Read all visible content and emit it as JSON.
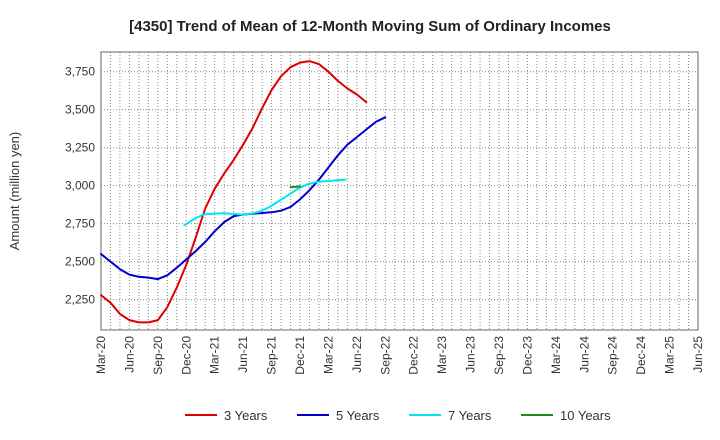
{
  "chart_data": {
    "type": "line",
    "title": "[4350]  Trend of Mean of 12-Month Moving Sum of Ordinary Incomes",
    "xlabel": "",
    "ylabel": "Amount (million yen)",
    "ylim": [
      2050,
      3880
    ],
    "yticks": [
      2250,
      2500,
      2750,
      3000,
      3250,
      3500,
      3750
    ],
    "ytick_labels": [
      "2,250",
      "2,500",
      "2,750",
      "3,000",
      "3,250",
      "3,500",
      "3,750"
    ],
    "x_tick_labels": [
      "Mar-20",
      "Jun-20",
      "Sep-20",
      "Dec-20",
      "Mar-21",
      "Jun-21",
      "Sep-21",
      "Dec-21",
      "Mar-22",
      "Jun-22",
      "Sep-22",
      "Dec-22",
      "Mar-23",
      "Jun-23",
      "Sep-23",
      "Dec-23",
      "Mar-24",
      "Jun-24",
      "Sep-24",
      "Dec-24",
      "Mar-25",
      "Jun-25"
    ],
    "grid": true,
    "legend_position": "bottom",
    "series": [
      {
        "name": "3 Years",
        "color": "#dd0000",
        "start_index": 0,
        "values": [
          2280,
          2230,
          2155,
          2115,
          2100,
          2100,
          2115,
          2200,
          2330,
          2480,
          2660,
          2850,
          2980,
          3080,
          3170,
          3270,
          3380,
          3510,
          3630,
          3720,
          3780,
          3810,
          3820,
          3800,
          3750,
          3690,
          3640,
          3600,
          3550
        ]
      },
      {
        "name": "5 Years",
        "color": "#0000cc",
        "start_index": 0,
        "values": [
          2550,
          2500,
          2450,
          2415,
          2400,
          2395,
          2385,
          2410,
          2460,
          2515,
          2570,
          2630,
          2700,
          2760,
          2800,
          2810,
          2815,
          2820,
          2825,
          2835,
          2860,
          2910,
          2970,
          3040,
          3120,
          3200,
          3270,
          3320,
          3370,
          3420,
          3450
        ]
      },
      {
        "name": "7 Years",
        "color": "#00e5ee",
        "start_index": 8.8,
        "values": [
          2740,
          2780,
          2810,
          2815,
          2818,
          2815,
          2810,
          2815,
          2830,
          2860,
          2900,
          2940,
          2980,
          3010,
          3025,
          3030,
          3035,
          3040
        ]
      },
      {
        "name": "10 Years",
        "color": "#228822",
        "start_index": 20,
        "values": [
          2990,
          2995
        ]
      }
    ]
  }
}
